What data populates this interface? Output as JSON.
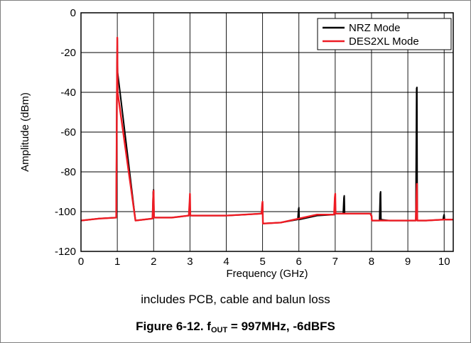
{
  "chart_data": {
    "type": "line",
    "xlabel": "Frequency (GHz)",
    "ylabel": "Amplitude (dBm)",
    "xlim": [
      0,
      10.25
    ],
    "ylim": [
      -120,
      0
    ],
    "xticks": [
      0,
      1,
      2,
      3,
      4,
      5,
      6,
      7,
      8,
      9,
      10
    ],
    "yticks": [
      0,
      -20,
      -40,
      -60,
      -80,
      -100,
      -120
    ],
    "grid": true,
    "legend_position": "top-right",
    "series": [
      {
        "name": "NRZ Mode",
        "color": "#000000",
        "x": [
          0,
          0.5,
          0.97,
          0.99,
          1.0,
          1.01,
          1.5,
          1.97,
          1.99,
          2.0,
          2.01,
          2.5,
          2.97,
          2.99,
          3.0,
          3.01,
          3.5,
          4.0,
          4.5,
          4.97,
          4.99,
          5.0,
          5.01,
          5.5,
          5.97,
          5.99,
          6.0,
          6.01,
          6.5,
          6.97,
          6.99,
          7.0,
          7.01,
          7.22,
          7.24,
          7.25,
          7.26,
          7.5,
          7.97,
          7.99,
          8.0,
          8.01,
          8.22,
          8.24,
          8.25,
          8.26,
          8.5,
          9.22,
          9.24,
          9.25,
          9.26,
          9.5,
          9.97,
          9.99,
          10.0,
          10.01,
          10.25
        ],
        "y": [
          -104.5,
          -103.5,
          -103,
          -30,
          -13,
          -30,
          -104.5,
          -103.5,
          -90,
          -89,
          -103,
          -103,
          -102,
          -101,
          -100,
          -102,
          -102,
          -102,
          -101.5,
          -101,
          -97,
          -96,
          -106,
          -105.5,
          -104,
          -99,
          -98,
          -104,
          -102,
          -101.5,
          -99,
          -98,
          -101,
          -101,
          -93,
          -92,
          -101,
          -101,
          -101,
          -102,
          -102,
          -104.5,
          -104.5,
          -91,
          -90,
          -104,
          -104.5,
          -104.5,
          -38,
          -37.5,
          -104.5,
          -104.5,
          -104,
          -102,
          -101.5,
          -104,
          -104
        ]
      },
      {
        "name": "DES2XL Mode",
        "color": "#ee1c24",
        "x": [
          0,
          0.5,
          0.97,
          0.99,
          1.0,
          1.01,
          1.5,
          1.97,
          1.99,
          2.0,
          2.01,
          2.5,
          2.97,
          2.99,
          3.0,
          3.01,
          3.5,
          4.0,
          4.5,
          4.97,
          4.99,
          5.0,
          5.01,
          5.5,
          6.0,
          6.5,
          6.97,
          6.99,
          7.0,
          7.01,
          7.5,
          7.97,
          7.99,
          8.0,
          8.01,
          8.5,
          9.22,
          9.24,
          9.25,
          9.26,
          9.5,
          10.0,
          10.25
        ],
        "y": [
          -104.5,
          -103.5,
          -103,
          -40,
          -12.5,
          -40,
          -104.5,
          -103.5,
          -92,
          -89.5,
          -103,
          -103,
          -102,
          -95,
          -91,
          -102,
          -102,
          -102,
          -101.5,
          -101,
          -96,
          -95,
          -106,
          -105.5,
          -103.5,
          -101.5,
          -101.5,
          -93,
          -91,
          -101,
          -101,
          -101,
          -102,
          -102,
          -104.5,
          -104.5,
          -104.5,
          -90,
          -86,
          -104.5,
          -104.5,
          -104,
          -104
        ]
      }
    ]
  },
  "captions": {
    "note": "includes PCB, cable and balun loss",
    "figure_prefix": "Figure 6-12. f",
    "figure_subscript": "OUT",
    "figure_suffix": " = 997MHz, -6dBFS"
  }
}
